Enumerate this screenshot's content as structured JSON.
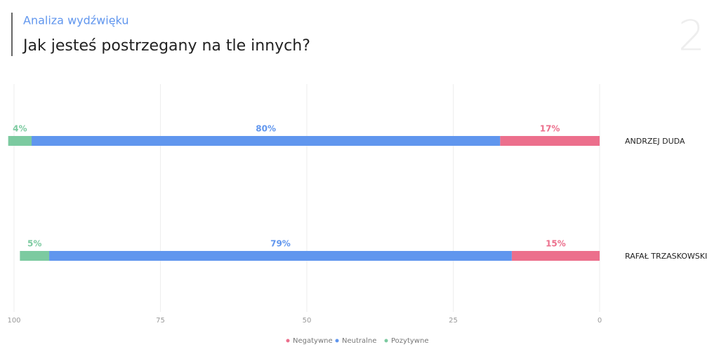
{
  "header": {
    "subtitle": "Analiza wydźwięku",
    "title": "Jak jesteś postrzegany na tle innych?",
    "page_number": 2
  },
  "chart_data": {
    "type": "stacked-barh",
    "categories": [
      "ANDRZEJ DUDA",
      "RAFAŁ TRZASKOWSKI"
    ],
    "series": [
      {
        "name": "Negatywne",
        "color": "#ec6f8c",
        "values": [
          17,
          15
        ],
        "value_labels": [
          "17%",
          "15%"
        ]
      },
      {
        "name": "Neutralne",
        "color": "#6096ee",
        "values": [
          80,
          79
        ],
        "value_labels": [
          "80%",
          "79%"
        ]
      },
      {
        "name": "Pozytywne",
        "color": "#7ccaa0",
        "values": [
          4,
          5
        ],
        "value_labels": [
          "4%",
          "5%"
        ]
      }
    ],
    "xlim": [
      100,
      0
    ],
    "xticks": [
      100,
      75,
      50,
      25,
      0
    ],
    "grid": true,
    "legend": "bottom"
  }
}
